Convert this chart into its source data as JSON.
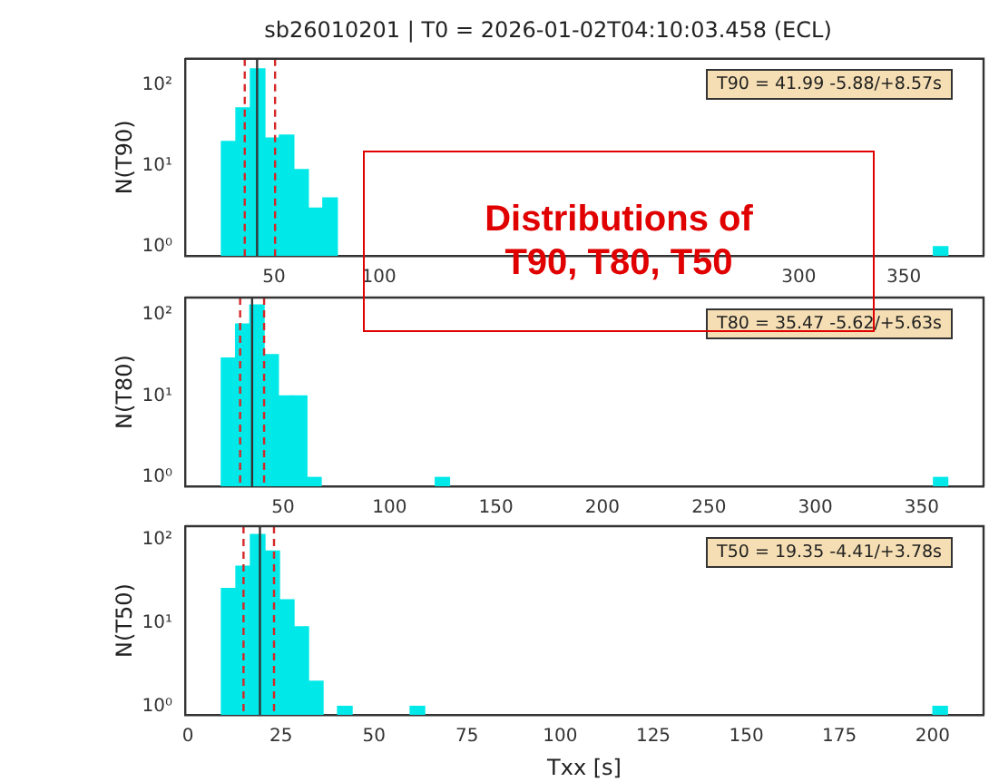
{
  "chart_data": [
    {
      "type": "histogram",
      "title": "sb26010201 | T0 = 2026-01-02T04:10:03.458 (ECL)",
      "ylabel": "N(T90)",
      "color": "#00e8e8",
      "bins": [
        25,
        31.9,
        38.8,
        45.7,
        52.6,
        59.5,
        66.4,
        73.3,
        80.2,
        364.1,
        371
      ],
      "values": [
        20,
        52,
        158,
        22,
        24,
        9,
        3,
        4,
        null,
        1
      ],
      "xlim": [
        7.7,
        388
      ],
      "xticks": [
        50,
        100,
        300,
        350
      ],
      "ylim": [
        0.77,
        210
      ],
      "yticks": [
        {
          "value": 1,
          "label": "10⁰"
        },
        {
          "value": 10,
          "label": "10¹"
        },
        {
          "value": 100,
          "label": "10²"
        }
      ],
      "log": true,
      "ref_lines": [
        {
          "axis": "x",
          "value": 41.99,
          "color": "#333333"
        },
        {
          "axis": "x",
          "value": 36.11,
          "color": "#d62728",
          "line_style": "dashed"
        },
        {
          "axis": "x",
          "value": 50.56,
          "color": "#d62728",
          "line_style": "dashed"
        }
      ],
      "annotations": [
        "T90 = 41.99 -5.88/+8.57s",
        "Distributions of T90, T80, T50"
      ]
    },
    {
      "type": "histogram",
      "ylabel": "N(T80)",
      "color": "#00e8e8",
      "bins": [
        21,
        27.7,
        34.4,
        41.1,
        47.8,
        54.5,
        61.2,
        67.9,
        121.5,
        128.2,
        355.5,
        362.2
      ],
      "values": [
        29,
        76,
        130,
        32,
        10,
        10,
        1,
        null,
        1,
        null,
        1
      ],
      "xlim": [
        4,
        379
      ],
      "xticks": [
        50,
        100,
        150,
        200,
        250,
        300,
        350
      ],
      "ylim": [
        0.78,
        160
      ],
      "yticks": [
        {
          "value": 1,
          "label": "10⁰"
        },
        {
          "value": 10,
          "label": "10¹"
        },
        {
          "value": 100,
          "label": "10²"
        }
      ],
      "log": true,
      "ref_lines": [
        {
          "axis": "x",
          "value": 35.47,
          "color": "#333333"
        },
        {
          "axis": "x",
          "value": 29.85,
          "color": "#d62728",
          "line_style": "dashed"
        },
        {
          "axis": "x",
          "value": 41.1,
          "color": "#d62728",
          "line_style": "dashed"
        }
      ],
      "annotations": [
        "T80 = 35.47 -5.62/+5.63s"
      ]
    },
    {
      "type": "histogram",
      "xlabel": "Txx [s]",
      "ylabel": "N(T50)",
      "color": "#00e8e8",
      "bins": [
        9,
        12.9,
        16.8,
        20.7,
        24.6,
        28.5,
        32.4,
        36.3,
        40.2,
        44.1,
        59.7,
        63.6,
        200.1,
        204
      ],
      "values": [
        26,
        48,
        115,
        73,
        19,
        9,
        2,
        null,
        1,
        null,
        1,
        null,
        1
      ],
      "xlim": [
        -0.75,
        213.7
      ],
      "xticks": [
        0,
        25,
        50,
        75,
        100,
        125,
        150,
        175,
        200
      ],
      "ylim": [
        0.79,
        145
      ],
      "yticks": [
        {
          "value": 1,
          "label": "10⁰"
        },
        {
          "value": 10,
          "label": "10¹"
        },
        {
          "value": 100,
          "label": "10²"
        }
      ],
      "log": true,
      "ref_lines": [
        {
          "axis": "x",
          "value": 19.35,
          "color": "#333333"
        },
        {
          "axis": "x",
          "value": 14.94,
          "color": "#d62728",
          "line_style": "dashed"
        },
        {
          "axis": "x",
          "value": 23.13,
          "color": "#d62728",
          "line_style": "dashed"
        }
      ],
      "annotations": [
        "T50 = 19.35 -4.41/+3.78s"
      ]
    }
  ]
}
